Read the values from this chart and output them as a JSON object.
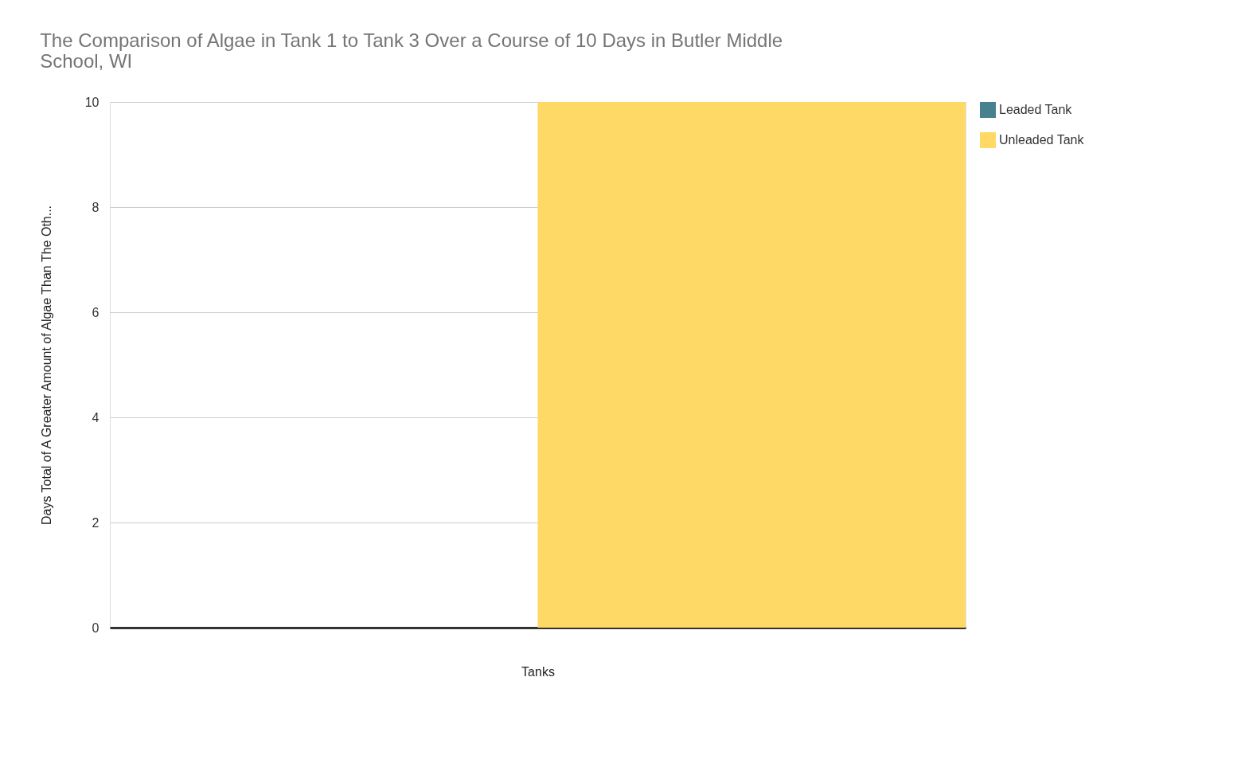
{
  "chart_data": {
    "type": "bar",
    "title": "The Comparison of Algae in Tank 1 to Tank 3 Over a Course of 10 Days in Butler Middle School, WI",
    "xlabel": "Tanks",
    "ylabel": "Days Total of A Greater Amount of Algae Than The Oth...",
    "categories": [
      null
    ],
    "series": [
      {
        "name": "Leaded Tank",
        "color": "#45818e",
        "values": [
          0
        ]
      },
      {
        "name": "Unleaded Tank",
        "color": "#ffd966",
        "values": [
          10
        ]
      }
    ],
    "ylim": [
      0,
      10
    ],
    "yticks": [
      0,
      2,
      4,
      6,
      8,
      10
    ],
    "grid": "y",
    "legend": "top right"
  }
}
